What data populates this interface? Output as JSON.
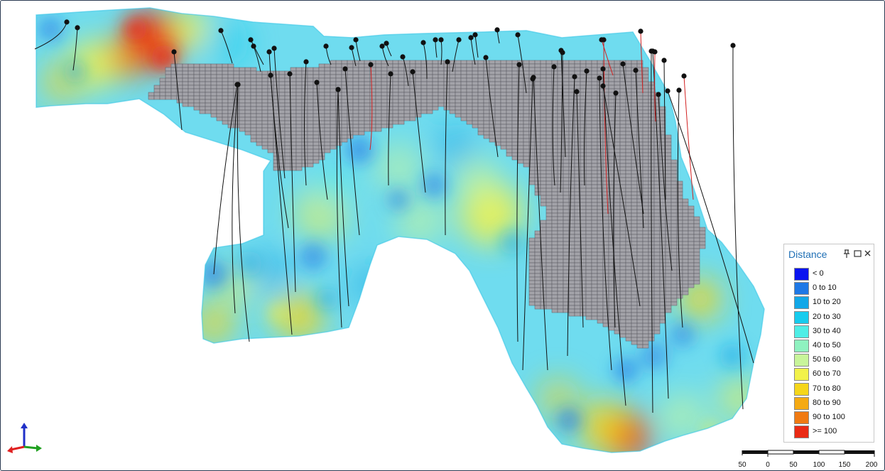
{
  "legend": {
    "title": "Distance",
    "controls": {
      "pin_icon": "pin-icon",
      "restore_icon": "window-icon",
      "close_icon": "close-icon"
    },
    "items": [
      {
        "label": "< 0",
        "color": "#0a14f0"
      },
      {
        "label": "0 to 10",
        "color": "#1e78e6"
      },
      {
        "label": "10 to 20",
        "color": "#12a8e8"
      },
      {
        "label": "20 to 30",
        "color": "#16ccee"
      },
      {
        "label": "30 to 40",
        "color": "#4feee6"
      },
      {
        "label": "40 to 50",
        "color": "#8ff2c0"
      },
      {
        "label": "50 to 60",
        "color": "#c8f59a"
      },
      {
        "label": "60 to 70",
        "color": "#f2f24a"
      },
      {
        "label": "70 to 80",
        "color": "#f5d61a"
      },
      {
        "label": "80 to 90",
        "color": "#f5aa12"
      },
      {
        "label": "90 to 100",
        "color": "#f07a12"
      },
      {
        "label": ">= 100",
        "color": "#ea2a14"
      }
    ]
  },
  "scale_bar": {
    "labels": [
      "50",
      "0",
      "50",
      "100",
      "150",
      "200"
    ]
  },
  "axis_triad": {
    "x_color": "#e02020",
    "y_color": "#20a020",
    "z_color": "#2030c8"
  },
  "scene": {
    "surface_color": "#6fdcef",
    "block_color": "#a3a3a9",
    "block_edge_color": "#5a5a62",
    "well_color": "#111111",
    "highlight_well_color": "#d22020"
  }
}
